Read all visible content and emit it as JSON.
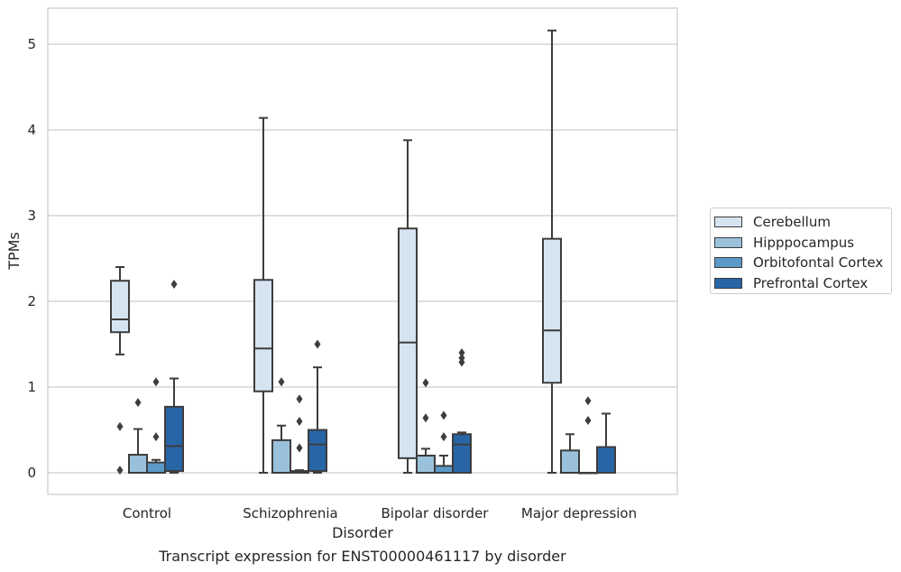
{
  "chart_data": {
    "type": "box",
    "title": "Transcript expression for ENST00000461117 by disorder",
    "xlabel": "Disorder",
    "ylabel": "TPMs",
    "ylim": [
      -0.25,
      5.42
    ],
    "yticks": [
      0,
      1,
      2,
      3,
      4,
      5
    ],
    "grid": "horizontal",
    "legend_position": "right",
    "categories": [
      "Control",
      "Schizophrenia",
      "Bipolar disorder",
      "Major depression"
    ],
    "series": [
      {
        "name": "Cerebellum",
        "color": "#d6e4f2",
        "boxes": [
          {
            "whislo": 1.38,
            "q1": 1.64,
            "med": 1.79,
            "q3": 2.24,
            "whishi": 2.4,
            "fliers": []
          },
          {
            "whislo": 0.0,
            "q1": 0.95,
            "med": 1.45,
            "q3": 2.25,
            "whishi": 4.14,
            "fliers": []
          },
          {
            "whislo": 0.0,
            "q1": 0.17,
            "med": 1.52,
            "q3": 2.85,
            "whishi": 3.88,
            "fliers": []
          },
          {
            "whislo": 0.0,
            "q1": 1.05,
            "med": 1.66,
            "q3": 2.73,
            "whishi": 5.16,
            "fliers": []
          }
        ]
      },
      {
        "name": "Hipppocampus",
        "color": "#9ac1dc",
        "boxes": [
          {
            "whislo": 0.0,
            "q1": 0.0,
            "med": 0.0,
            "q3": 0.21,
            "whishi": 0.51,
            "fliers": [
              0.82
            ]
          },
          {
            "whislo": 0.0,
            "q1": 0.0,
            "med": 0.0,
            "q3": 0.38,
            "whishi": 0.55,
            "fliers": [
              1.06
            ]
          },
          {
            "whislo": 0.0,
            "q1": 0.0,
            "med": 0.0,
            "q3": 0.2,
            "whishi": 0.28,
            "fliers": [
              0.64,
              1.05
            ]
          },
          {
            "whislo": 0.0,
            "q1": 0.0,
            "med": 0.0,
            "q3": 0.26,
            "whishi": 0.45,
            "fliers": []
          }
        ]
      },
      {
        "name": "Orbitofontal Cortex",
        "color": "#5b9ac8",
        "boxes": [
          {
            "whislo": 0.0,
            "q1": 0.0,
            "med": 0.0,
            "q3": 0.12,
            "whishi": 0.15,
            "fliers": [
              0.42,
              1.06
            ]
          },
          {
            "whislo": 0.0,
            "q1": 0.0,
            "med": 0.0,
            "q3": 0.02,
            "whishi": 0.03,
            "fliers": [
              0.29,
              0.6,
              0.86
            ]
          },
          {
            "whislo": 0.0,
            "q1": 0.0,
            "med": 0.0,
            "q3": 0.08,
            "whishi": 0.2,
            "fliers": [
              0.42,
              0.67
            ]
          },
          {
            "whislo": 0.0,
            "q1": 0.0,
            "med": 0.0,
            "q3": 0.0,
            "whishi": 0.0,
            "fliers": [
              0.61,
              0.84
            ]
          }
        ]
      },
      {
        "name": "Prefrontal Cortex",
        "color": "#2765a6",
        "boxes": [
          {
            "whislo": 0.0,
            "q1": 0.02,
            "med": 0.31,
            "q3": 0.77,
            "whishi": 1.1,
            "fliers": [
              2.2
            ]
          },
          {
            "whislo": 0.0,
            "q1": 0.02,
            "med": 0.33,
            "q3": 0.5,
            "whishi": 1.23,
            "fliers": [
              1.5
            ]
          },
          {
            "whislo": 0.0,
            "q1": 0.0,
            "med": 0.33,
            "q3": 0.45,
            "whishi": 0.47,
            "fliers": [
              1.29,
              1.34,
              1.4
            ]
          },
          {
            "whislo": 0.0,
            "q1": 0.0,
            "med": 0.0,
            "q3": 0.3,
            "whishi": 0.69,
            "fliers": []
          }
        ]
      }
    ],
    "extra_fliers": [
      {
        "category": 0,
        "series": 0,
        "values": [
          0.03,
          0.54
        ]
      }
    ]
  }
}
